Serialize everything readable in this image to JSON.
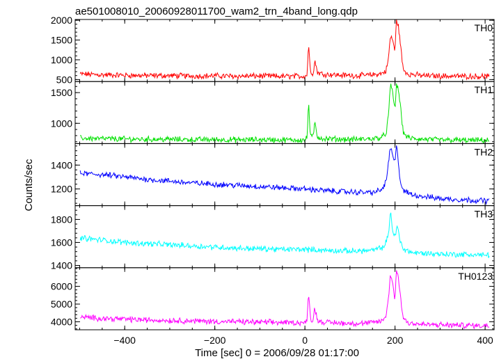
{
  "chart_data": {
    "type": "line",
    "title": "ae501008010_20060928011700_wam2_trn_4band_long.qdp",
    "xlabel": "Time [sec] 0 = 2006/09/28 01:17:00",
    "ylabel": "Counts/sec",
    "xlim": [
      -510,
      420
    ],
    "x_ticks": [
      -400,
      -200,
      0,
      200,
      400
    ],
    "x_tick_labels": [
      "−400",
      "−200",
      "0",
      "200",
      "400"
    ],
    "grid": false,
    "panels": [
      {
        "name": "TH0",
        "color": "#ff0000",
        "ylim": [
          450,
          2020
        ],
        "y_ticks": [
          500,
          1000,
          1500,
          2000
        ],
        "y_tick_labels": [
          "500",
          "1000",
          "1500",
          "2000"
        ],
        "x": [
          -500,
          -450,
          -400,
          -350,
          -300,
          -250,
          -200,
          -150,
          -100,
          -50,
          0,
          5,
          8,
          12,
          18,
          22,
          28,
          40,
          80,
          120,
          150,
          170,
          180,
          185,
          190,
          195,
          200,
          203,
          207,
          212,
          218,
          230,
          260,
          300,
          350,
          410
        ],
        "values": [
          640,
          620,
          610,
          600,
          600,
          590,
          595,
          585,
          590,
          580,
          585,
          620,
          1450,
          700,
          650,
          980,
          680,
          640,
          610,
          600,
          620,
          650,
          720,
          1000,
          1600,
          1500,
          1200,
          2000,
          1900,
          1400,
          750,
          640,
          600,
          590,
          585,
          580
        ]
      },
      {
        "name": "TH1",
        "color": "#00e000",
        "ylim": [
          670,
          1680
        ],
        "y_ticks": [
          1000,
          1500
        ],
        "y_tick_labels": [
          "1000",
          "1500"
        ],
        "x": [
          -500,
          -450,
          -400,
          -350,
          -300,
          -250,
          -200,
          -150,
          -100,
          -50,
          0,
          5,
          8,
          12,
          18,
          22,
          28,
          40,
          80,
          120,
          150,
          170,
          180,
          185,
          190,
          195,
          200,
          203,
          207,
          212,
          218,
          230,
          260,
          300,
          350,
          410
        ],
        "values": [
          760,
          750,
          745,
          740,
          740,
          735,
          735,
          730,
          735,
          730,
          730,
          760,
          1380,
          800,
          770,
          1010,
          780,
          750,
          740,
          740,
          750,
          770,
          830,
          1100,
          1620,
          1500,
          1200,
          1650,
          1550,
          1300,
          850,
          760,
          740,
          730,
          725,
          720
        ]
      },
      {
        "name": "TH2",
        "color": "#0000ff",
        "ylim": [
          1060,
          1580
        ],
        "y_ticks": [
          1200,
          1400
        ],
        "y_tick_labels": [
          "1200",
          "1400"
        ],
        "x": [
          -500,
          -450,
          -400,
          -350,
          -300,
          -250,
          -200,
          -150,
          -100,
          -50,
          0,
          50,
          100,
          150,
          170,
          180,
          185,
          190,
          195,
          200,
          203,
          207,
          212,
          220,
          240,
          260,
          300,
          350,
          410
        ],
        "values": [
          1330,
          1320,
          1300,
          1280,
          1265,
          1250,
          1240,
          1230,
          1220,
          1210,
          1200,
          1185,
          1175,
          1170,
          1190,
          1260,
          1400,
          1560,
          1470,
          1420,
          1560,
          1450,
          1250,
          1180,
          1150,
          1140,
          1120,
          1110,
          1100
        ]
      },
      {
        "name": "TH3",
        "color": "#00ffff",
        "ylim": [
          1380,
          1920
        ],
        "y_ticks": [
          1400,
          1600,
          1800
        ],
        "y_tick_labels": [
          "1400",
          "1600",
          "1800"
        ],
        "x": [
          -500,
          -450,
          -400,
          -350,
          -300,
          -250,
          -200,
          -150,
          -100,
          -50,
          0,
          50,
          100,
          150,
          175,
          185,
          190,
          195,
          200,
          205,
          212,
          220,
          240,
          300,
          350,
          410
        ],
        "values": [
          1640,
          1620,
          1600,
          1590,
          1580,
          1570,
          1560,
          1550,
          1545,
          1540,
          1540,
          1530,
          1525,
          1530,
          1560,
          1650,
          1880,
          1700,
          1640,
          1750,
          1600,
          1540,
          1510,
          1500,
          1495,
          1490
        ]
      },
      {
        "name": "TH0123",
        "color": "#ff00ff",
        "ylim": [
          3550,
          7050
        ],
        "y_ticks": [
          4000,
          5000,
          6000
        ],
        "y_tick_labels": [
          "4000",
          "5000",
          "6000"
        ],
        "x": [
          -500,
          -450,
          -400,
          -350,
          -300,
          -250,
          -200,
          -150,
          -100,
          -50,
          0,
          5,
          8,
          12,
          18,
          22,
          28,
          40,
          80,
          120,
          150,
          170,
          180,
          185,
          190,
          195,
          200,
          203,
          207,
          212,
          218,
          230,
          260,
          300,
          350,
          410
        ],
        "values": [
          4250,
          4200,
          4150,
          4100,
          4080,
          4050,
          4020,
          4000,
          3980,
          3960,
          3950,
          4050,
          5800,
          4200,
          4100,
          4800,
          4100,
          3980,
          3930,
          3900,
          3950,
          4050,
          4300,
          5200,
          6700,
          6200,
          5200,
          7000,
          6500,
          5500,
          4200,
          3950,
          3850,
          3820,
          3800,
          3780
        ]
      }
    ]
  }
}
